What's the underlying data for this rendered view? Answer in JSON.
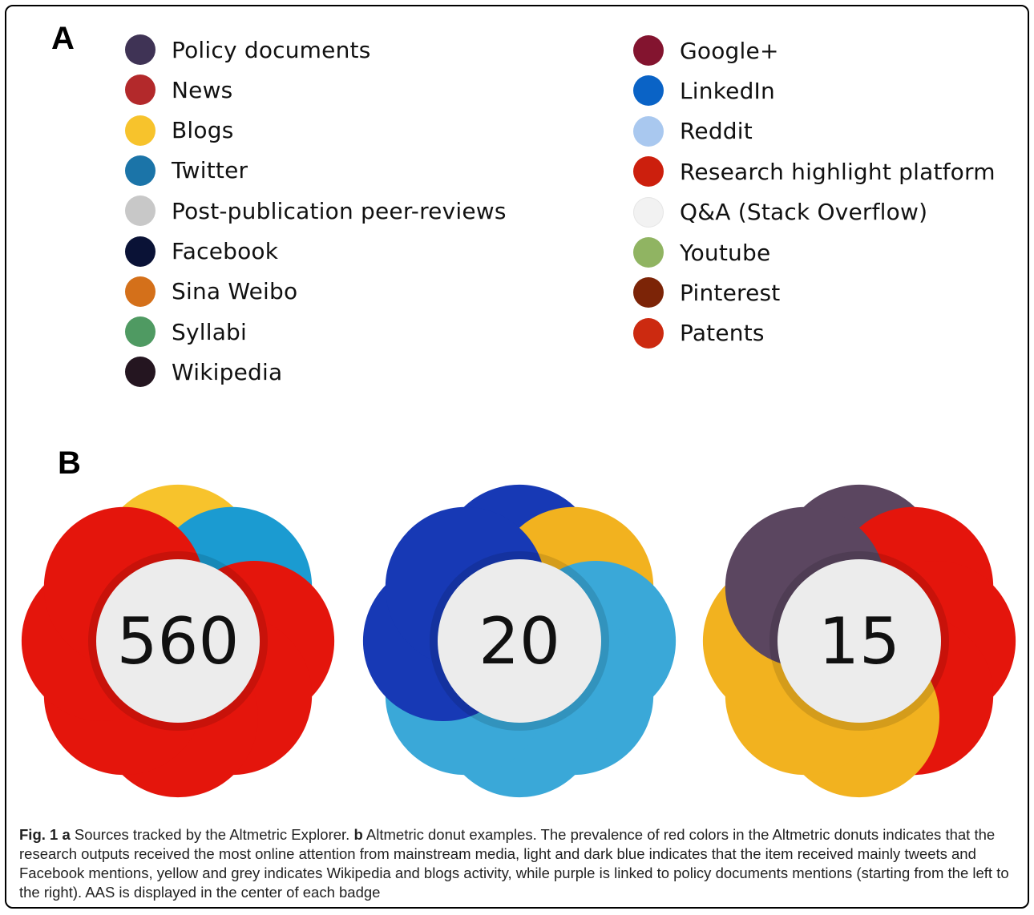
{
  "panel_a_label": "A",
  "panel_b_label": "B",
  "legend_left": [
    {
      "label": "Policy documents",
      "color": "#3f3355"
    },
    {
      "label": "News",
      "color": "#b3292b"
    },
    {
      "label": "Blogs",
      "color": "#f7c32c"
    },
    {
      "label": "Twitter",
      "color": "#1b74a8"
    },
    {
      "label": "Post-publication peer-reviews",
      "color": "#c8c8c8"
    },
    {
      "label": "Facebook",
      "color": "#0a1236"
    },
    {
      "label": "Sina Weibo",
      "color": "#d4701a"
    },
    {
      "label": "Syllabi",
      "color": "#4f9a62"
    },
    {
      "label": "Wikipedia",
      "color": "#241520"
    }
  ],
  "legend_right": [
    {
      "label": "Google+",
      "color": "#83142f"
    },
    {
      "label": "LinkedIn",
      "color": "#0a63c6"
    },
    {
      "label": "Reddit",
      "color": "#a9c8ef"
    },
    {
      "label": "Research highlight platform",
      "color": "#cc1f0d"
    },
    {
      "label": "Q&A (Stack Overflow)",
      "color": "#f2f2f2"
    },
    {
      "label": "Youtube",
      "color": "#90b462"
    },
    {
      "label": "Pinterest",
      "color": "#7c2407"
    },
    {
      "label": "Patents",
      "color": "#cc2a10"
    }
  ],
  "donuts": [
    {
      "score": "560",
      "colors": [
        "#f7c32c",
        "#1b9bd1",
        "#e4150c",
        "#e4150c",
        "#e4150c",
        "#e4150c",
        "#e4150c",
        "#e4150c"
      ]
    },
    {
      "score": "20",
      "colors": [
        "#1739b5",
        "#f2b21f",
        "#3aa8d8",
        "#3aa8d8",
        "#3aa8d8",
        "#3aa8d8",
        "#1739b5",
        "#1739b5"
      ]
    },
    {
      "score": "15",
      "colors": [
        "#5b4660",
        "#e4150c",
        "#e4150c",
        "#e4150c",
        "#f2b21f",
        "#f2b21f",
        "#f2b21f",
        "#5b4660"
      ]
    }
  ],
  "caption": {
    "fig_label": "Fig. 1",
    "a_label": "a",
    "a_text": " Sources tracked by the Altmetric Explorer. ",
    "b_label": "b",
    "b_text": " Altmetric donut examples. The prevalence of red colors in the Altmetric donuts indicates that the research outputs received the most online attention from mainstream media, light and dark blue indicates that the item received mainly tweets and Facebook mentions, yellow and grey indicates Wikipedia and blogs activity, while purple is linked to policy documents mentions (starting from the left to the right). AAS is displayed in the center of each badge"
  }
}
